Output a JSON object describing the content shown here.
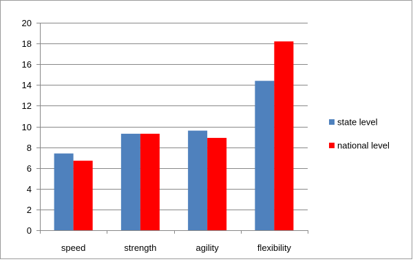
{
  "chart_data": {
    "type": "bar",
    "title": "",
    "xlabel": "",
    "ylabel": "",
    "categories": [
      "speed",
      "strength",
      "agility",
      "flexibility"
    ],
    "series": [
      {
        "name": "state level",
        "color": "#4f81bd",
        "values": [
          7.4,
          9.3,
          9.6,
          14.4
        ]
      },
      {
        "name": "national level",
        "color": "#ff0000",
        "values": [
          6.7,
          9.3,
          8.9,
          18.2
        ]
      }
    ],
    "ylim": [
      0,
      20
    ],
    "yticks": [
      "0",
      "2",
      "4",
      "6",
      "8",
      "10",
      "12",
      "14",
      "16",
      "18",
      "20"
    ],
    "grid": true,
    "legend": "right"
  }
}
